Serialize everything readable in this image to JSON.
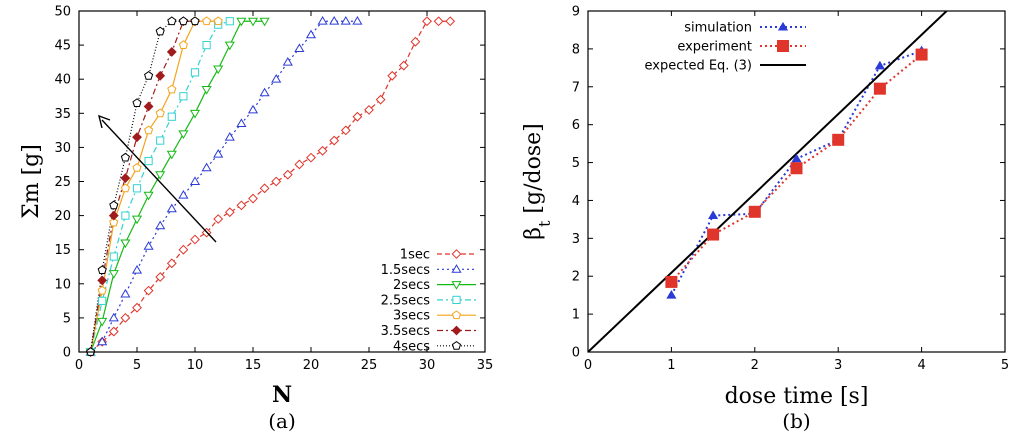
{
  "chart_data": [
    {
      "type": "line",
      "panel_label": "(a)",
      "xlabel": "N",
      "ylabel": "Σm [g]",
      "xlim": [
        0,
        35
      ],
      "ylim": [
        0,
        50
      ],
      "xticks": [
        0,
        5,
        10,
        15,
        20,
        25,
        30,
        35
      ],
      "yticks": [
        0,
        5,
        10,
        15,
        20,
        25,
        30,
        35,
        40,
        45,
        50
      ],
      "legend": "bottom-right",
      "annotation": "arrow pointing toward increasing dose time",
      "series": [
        {
          "name": "1sec",
          "color": "#e0352b",
          "marker": "diamond-open",
          "dash": "5,3",
          "x": [
            1,
            2,
            3,
            4,
            5,
            6,
            7,
            8,
            9,
            10,
            11,
            12,
            13,
            14,
            15,
            16,
            17,
            18,
            19,
            20,
            21,
            22,
            23,
            24,
            25,
            26,
            27,
            28,
            29,
            30,
            31,
            32
          ],
          "y": [
            0,
            1.5,
            3,
            5,
            6.5,
            9,
            11,
            13,
            15,
            16.5,
            17.5,
            19.5,
            20.5,
            21.5,
            22.5,
            24,
            25,
            26,
            27.5,
            28.5,
            29.5,
            31,
            32.5,
            34.5,
            35.5,
            37,
            40.5,
            42,
            45.5,
            48.5,
            48.5,
            48.5
          ]
        },
        {
          "name": "1.5secs",
          "color": "#2a3bd6",
          "marker": "triangle-open",
          "dash": "2,3",
          "x": [
            1,
            2,
            3,
            4,
            5,
            6,
            7,
            8,
            9,
            10,
            11,
            12,
            13,
            14,
            15,
            16,
            17,
            18,
            19,
            20,
            21,
            22,
            23,
            24
          ],
          "y": [
            0,
            1.5,
            5,
            8.5,
            12,
            15.5,
            18.5,
            21,
            23,
            25,
            27,
            29,
            31.5,
            33.5,
            35.5,
            38,
            40,
            42.5,
            44.5,
            46.5,
            48.5,
            48.5,
            48.5,
            48.5
          ]
        },
        {
          "name": "2secs",
          "color": "#15b915",
          "marker": "triangle-down-open",
          "dash": "",
          "x": [
            1,
            2,
            3,
            4,
            5,
            6,
            7,
            8,
            9,
            10,
            11,
            12,
            13,
            14,
            15,
            16
          ],
          "y": [
            0,
            4.5,
            11.5,
            16,
            19.5,
            23,
            26,
            29,
            32,
            35,
            38.5,
            41.5,
            45,
            48.5,
            48.5,
            48.5
          ]
        },
        {
          "name": "2.5secs",
          "color": "#33d2d2",
          "marker": "square-open",
          "dash": "6,3,2,3",
          "x": [
            1,
            2,
            3,
            4,
            5,
            6,
            7,
            8,
            9,
            10,
            11,
            12,
            13
          ],
          "y": [
            0,
            7.5,
            14,
            20,
            24,
            28,
            31,
            34.5,
            37.5,
            41,
            45,
            48,
            48.5
          ]
        },
        {
          "name": "3secs",
          "color": "#f4a41c",
          "marker": "pentagon-open",
          "dash": "",
          "x": [
            1,
            2,
            3,
            4,
            5,
            6,
            7,
            8,
            9,
            10,
            11,
            12
          ],
          "y": [
            0,
            9,
            19,
            24,
            27,
            32.5,
            35,
            38.5,
            45,
            48.5,
            48.5,
            48.5
          ]
        },
        {
          "name": "3.5secs",
          "color": "#a01c1c",
          "marker": "diamond-filled",
          "dash": "6,3,2,3",
          "x": [
            1,
            2,
            3,
            4,
            5,
            6,
            7,
            8,
            9,
            10
          ],
          "y": [
            0,
            10.5,
            20,
            25.5,
            31.5,
            36,
            40.5,
            44,
            48.5,
            48.5
          ]
        },
        {
          "name": "4secs",
          "color": "#000000",
          "marker": "pentagon-open",
          "dash": "1,2",
          "x": [
            1,
            2,
            3,
            4,
            5,
            6,
            7,
            8,
            9,
            10
          ],
          "y": [
            0,
            12,
            21.5,
            28.5,
            36.5,
            40.5,
            47,
            48.5,
            48.5,
            48.5
          ]
        }
      ]
    },
    {
      "type": "line",
      "panel_label": "(b)",
      "xlabel": "dose time [s]",
      "ylabel": "β",
      "ylabel_subscript": "t",
      "ylabel_suffix": " [g/dose]",
      "xlim": [
        0,
        5
      ],
      "ylim": [
        0,
        9
      ],
      "xticks": [
        0,
        1,
        2,
        3,
        4,
        5
      ],
      "yticks": [
        0,
        1,
        2,
        3,
        4,
        5,
        6,
        7,
        8,
        9
      ],
      "legend": "top-left",
      "series": [
        {
          "name": "simulation",
          "color": "#2a3bd6",
          "marker": "triangle-filled",
          "dash": "2,3",
          "x": [
            1,
            1.5,
            2,
            2.5,
            3,
            3.5,
            4
          ],
          "y": [
            1.5,
            3.6,
            3.65,
            5.1,
            5.6,
            7.55,
            7.95
          ]
        },
        {
          "name": "experiment",
          "color": "#e0352b",
          "marker": "square-filled",
          "dash": "2,3",
          "x": [
            1,
            1.5,
            2,
            2.5,
            3,
            3.5,
            4
          ],
          "y": [
            1.85,
            3.1,
            3.7,
            4.85,
            5.6,
            6.95,
            7.85
          ]
        },
        {
          "name": "expected Eq. (3)",
          "color": "#000000",
          "marker": "none",
          "dash": "",
          "x": [
            0,
            4.3
          ],
          "y": [
            0,
            9
          ]
        }
      ]
    }
  ]
}
